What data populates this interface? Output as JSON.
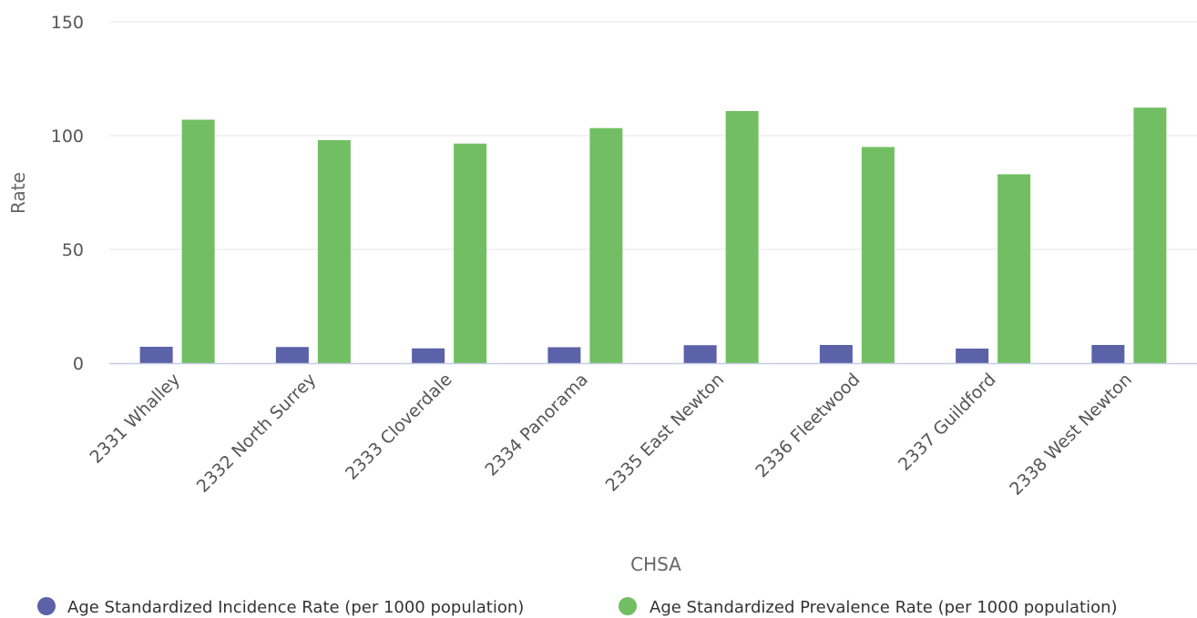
{
  "chart_data": {
    "type": "bar",
    "categories": [
      "2331 Whalley",
      "2332 North Surrey",
      "2333 Cloverdale",
      "2334 Panorama",
      "2335 East Newton",
      "2336 Fleetwood",
      "2337 Guildford",
      "2338 West Newton"
    ],
    "series": [
      {
        "name": "Age Standardized Incidence Rate (per 1000 population)",
        "color": "#5b62a8",
        "values": [
          7.2,
          7.1,
          6.5,
          7.0,
          7.9,
          8.0,
          6.4,
          8.0
        ]
      },
      {
        "name": "Age Standardized Prevalence Rate (per 1000 population)",
        "color": "#72bf63",
        "values": [
          107,
          98,
          96.5,
          103.3,
          110.8,
          95,
          83,
          112.3
        ]
      }
    ],
    "xlabel": "CHSA",
    "ylabel": "Rate",
    "ylim": [
      0,
      150
    ],
    "yticks": [
      0,
      50,
      100,
      150
    ],
    "grid": true,
    "legend": "bottom"
  }
}
